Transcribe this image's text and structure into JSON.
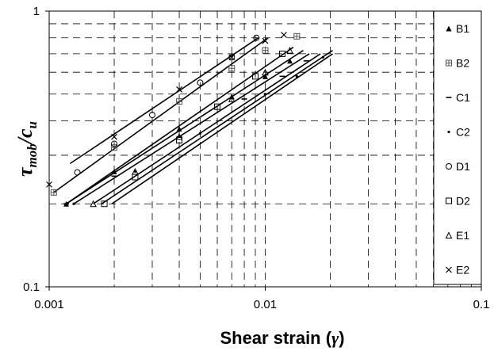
{
  "chart_data": {
    "type": "scatter",
    "title": "",
    "xlabel": "Shear strain (",
    "xlabel_symbol": "γ",
    "xlabel_close": ")",
    "ylabel_main": "τ",
    "ylabel_sub_mob": "mob",
    "ylabel_sep": "/c",
    "ylabel_sub_u": "u",
    "x_scale": "log",
    "y_scale": "log",
    "xlim": [
      0.001,
      0.1
    ],
    "ylim": [
      0.1,
      1
    ],
    "x_ticks": [
      "0.001",
      "0.01",
      "0.1"
    ],
    "y_ticks": [
      "0.1",
      "1"
    ],
    "grid": true,
    "legend_position": "right",
    "series": [
      {
        "name": "B1",
        "marker": "▲",
        "x": [
          0.0012,
          0.002,
          0.004,
          0.007,
          0.01,
          0.013
        ],
        "y": [
          0.2,
          0.262,
          0.374,
          0.49,
          0.58,
          0.66
        ]
      },
      {
        "name": "B2",
        "marker": "⊞",
        "x": [
          0.00105,
          0.002,
          0.004,
          0.007,
          0.01,
          0.014
        ],
        "y": [
          0.22,
          0.32,
          0.47,
          0.62,
          0.72,
          0.81
        ]
      },
      {
        "name": "C1",
        "marker": "–",
        "x": [
          0.0012,
          0.002,
          0.004,
          0.008,
          0.012,
          0.0155
        ],
        "y": [
          0.2,
          0.252,
          0.35,
          0.48,
          0.58,
          0.66
        ]
      },
      {
        "name": "C2",
        "marker": "·",
        "x": [
          0.0013,
          0.0025,
          0.005,
          0.01,
          0.014,
          0.0185
        ],
        "y": [
          0.2,
          0.262,
          0.36,
          0.5,
          0.58,
          0.68
        ]
      },
      {
        "name": "D1",
        "marker": "○",
        "x": [
          0.00135,
          0.002,
          0.003,
          0.005,
          0.007,
          0.0091
        ],
        "y": [
          0.26,
          0.33,
          0.42,
          0.55,
          0.68,
          0.8
        ]
      },
      {
        "name": "D2",
        "marker": "□",
        "x": [
          0.0018,
          0.0025,
          0.004,
          0.006,
          0.009,
          0.012
        ],
        "y": [
          0.2,
          0.25,
          0.34,
          0.45,
          0.58,
          0.7
        ]
      },
      {
        "name": "E1",
        "marker": "△",
        "x": [
          0.0016,
          0.0025,
          0.004,
          0.007,
          0.01,
          0.013
        ],
        "y": [
          0.2,
          0.262,
          0.35,
          0.48,
          0.6,
          0.72
        ]
      },
      {
        "name": "E2",
        "marker": "✕",
        "x": [
          0.001,
          0.002,
          0.004,
          0.007,
          0.01,
          0.0122
        ],
        "y": [
          0.235,
          0.35,
          0.52,
          0.68,
          0.78,
          0.82
        ]
      }
    ],
    "fit_lines": [
      {
        "x": [
          0.00125,
          0.0093
        ],
        "y": [
          0.28,
          0.8
        ]
      },
      {
        "x": [
          0.00105,
          0.0103
        ],
        "y": [
          0.22,
          0.8
        ]
      },
      {
        "x": [
          0.0012,
          0.0135
        ],
        "y": [
          0.2,
          0.74
        ]
      },
      {
        "x": [
          0.0012,
          0.015
        ],
        "y": [
          0.2,
          0.72
        ]
      },
      {
        "x": [
          0.0013,
          0.016
        ],
        "y": [
          0.2,
          0.7
        ]
      },
      {
        "x": [
          0.0016,
          0.018
        ],
        "y": [
          0.2,
          0.7
        ]
      },
      {
        "x": [
          0.00175,
          0.0205
        ],
        "y": [
          0.2,
          0.72
        ]
      },
      {
        "x": [
          0.00195,
          0.0205
        ],
        "y": [
          0.2,
          0.7
        ]
      }
    ]
  }
}
